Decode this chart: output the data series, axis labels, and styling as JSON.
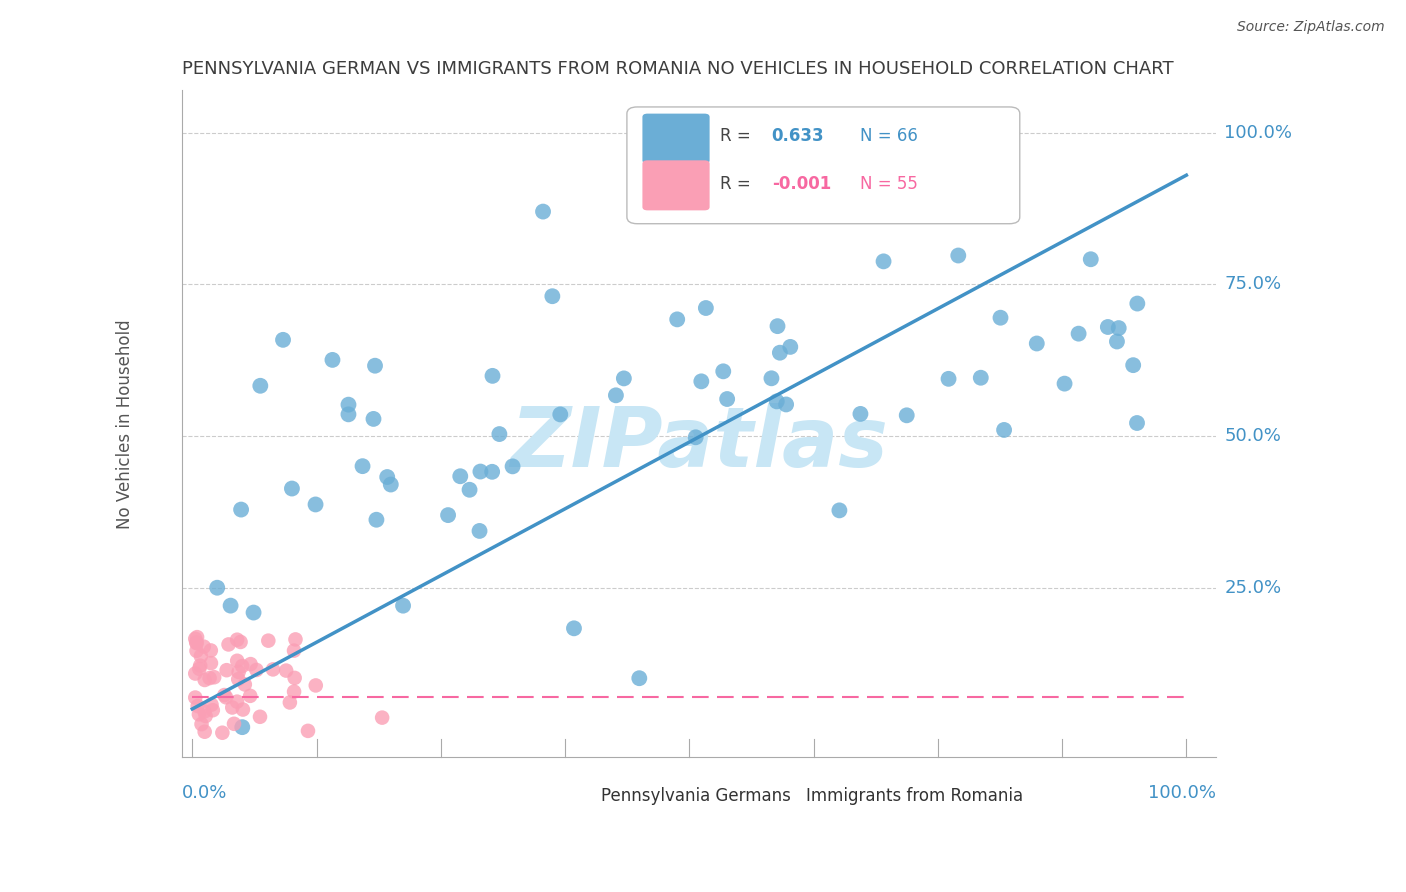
{
  "title": "PENNSYLVANIA GERMAN VS IMMIGRANTS FROM ROMANIA NO VEHICLES IN HOUSEHOLD CORRELATION CHART",
  "source": "Source: ZipAtlas.com",
  "ylabel": "No Vehicles in Household",
  "legend_blue_r": "0.633",
  "legend_blue_n": "66",
  "legend_pink_r": "-0.001",
  "legend_pink_n": "55",
  "legend_label_blue": "Pennsylvania Germans",
  "legend_label_pink": "Immigrants from Romania",
  "blue_color": "#6baed6",
  "pink_color": "#fa9fb5",
  "line_blue": "#4292c6",
  "line_pink": "#f768a1",
  "title_color": "#3d3d3d",
  "axis_tick_color": "#4292c6",
  "watermark_color": "#c8e6f5"
}
